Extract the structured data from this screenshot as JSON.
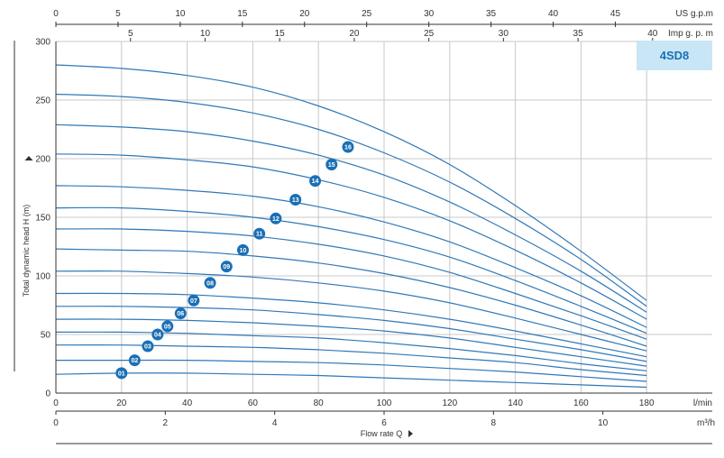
{
  "chart_data": {
    "type": "line",
    "model": "4SD8",
    "ylabel": "Total dynamic head H (m)",
    "xlabel": "Flow rate Q",
    "y_ticks": [
      "0",
      "50",
      "100",
      "150",
      "200",
      "250",
      "300"
    ],
    "ylim": [
      0,
      300
    ],
    "x_axes": {
      "lmin": {
        "unit": "l/min",
        "range": [
          0,
          200
        ],
        "ticks": [
          "0",
          "20",
          "40",
          "60",
          "80",
          "100",
          "120",
          "140",
          "160",
          "180"
        ]
      },
      "m3h": {
        "unit": "m³/h",
        "range": [
          0,
          12
        ],
        "ticks": [
          "0",
          "2",
          "4",
          "6",
          "8",
          "10"
        ]
      },
      "usgpm": {
        "unit": "US g.p.m",
        "range": [
          0,
          52.8
        ],
        "ticks": [
          "0",
          "5",
          "10",
          "15",
          "20",
          "25",
          "30",
          "35",
          "40",
          "45"
        ]
      },
      "impgpm": {
        "unit": "Imp g. p. m",
        "range": [
          0,
          44
        ],
        "ticks": [
          "5",
          "10",
          "15",
          "20",
          "25",
          "30",
          "35",
          "40"
        ]
      }
    },
    "grid": true,
    "x_unit": "l/min",
    "series": [
      {
        "name": "01",
        "x": [
          0,
          20,
          40,
          60,
          80,
          100,
          120,
          140,
          160,
          180
        ],
        "y": [
          16,
          17,
          17,
          16,
          15,
          13,
          11,
          9,
          7,
          5
        ]
      },
      {
        "name": "02",
        "x": [
          0,
          20,
          40,
          60,
          80,
          100,
          120,
          140,
          160,
          180
        ],
        "y": [
          28,
          28,
          28,
          27,
          26,
          24,
          21,
          18,
          14,
          10
        ]
      },
      {
        "name": "03",
        "x": [
          0,
          20,
          40,
          60,
          80,
          100,
          120,
          140,
          160,
          180
        ],
        "y": [
          41,
          41,
          40,
          39,
          37,
          34,
          30,
          26,
          20,
          15
        ]
      },
      {
        "name": "04",
        "x": [
          0,
          20,
          40,
          60,
          80,
          100,
          120,
          140,
          160,
          180
        ],
        "y": [
          52,
          52,
          51,
          49,
          47,
          43,
          38,
          32,
          25,
          19
        ]
      },
      {
        "name": "05",
        "x": [
          0,
          20,
          40,
          60,
          80,
          100,
          120,
          140,
          160,
          180
        ],
        "y": [
          63,
          63,
          62,
          60,
          57,
          53,
          47,
          39,
          31,
          23
        ]
      },
      {
        "name": "06",
        "x": [
          0,
          20,
          40,
          60,
          80,
          100,
          120,
          140,
          160,
          180
        ],
        "y": [
          74,
          74,
          73,
          71,
          67,
          62,
          55,
          46,
          37,
          27
        ]
      },
      {
        "name": "07",
        "x": [
          0,
          20,
          40,
          60,
          80,
          100,
          120,
          140,
          160,
          180
        ],
        "y": [
          85,
          85,
          84,
          81,
          77,
          71,
          63,
          53,
          42,
          31
        ]
      },
      {
        "name": "08",
        "x": [
          0,
          20,
          40,
          60,
          80,
          100,
          120,
          140,
          160,
          180
        ],
        "y": [
          104,
          104,
          102,
          99,
          94,
          87,
          77,
          64,
          50,
          36
        ]
      },
      {
        "name": "09",
        "x": [
          0,
          20,
          40,
          60,
          80,
          100,
          120,
          140,
          160,
          180
        ],
        "y": [
          123,
          122,
          121,
          117,
          111,
          102,
          90,
          75,
          58,
          40
        ]
      },
      {
        "name": "10",
        "x": [
          0,
          20,
          40,
          60,
          80,
          100,
          120,
          140,
          160,
          180
        ],
        "y": [
          140,
          140,
          138,
          134,
          127,
          117,
          103,
          85,
          66,
          46
        ]
      },
      {
        "name": "11",
        "x": [
          0,
          20,
          40,
          60,
          80,
          100,
          120,
          140,
          160,
          180
        ],
        "y": [
          158,
          158,
          155,
          150,
          142,
          131,
          116,
          96,
          74,
          51
        ]
      },
      {
        "name": "12",
        "x": [
          0,
          20,
          40,
          60,
          80,
          100,
          120,
          140,
          160,
          180
        ],
        "y": [
          177,
          176,
          173,
          168,
          159,
          146,
          129,
          107,
          83,
          56
        ]
      },
      {
        "name": "13",
        "x": [
          0,
          20,
          40,
          60,
          80,
          100,
          120,
          140,
          160,
          180
        ],
        "y": [
          204,
          203,
          199,
          193,
          182,
          167,
          147,
          122,
          94,
          63
        ]
      },
      {
        "name": "14",
        "x": [
          0,
          20,
          40,
          60,
          80,
          100,
          120,
          140,
          160,
          180
        ],
        "y": [
          229,
          227,
          223,
          215,
          203,
          186,
          163,
          135,
          104,
          69
        ]
      },
      {
        "name": "15",
        "x": [
          0,
          20,
          40,
          60,
          80,
          100,
          120,
          140,
          160,
          180
        ],
        "y": [
          255,
          253,
          248,
          239,
          225,
          205,
          180,
          149,
          114,
          74
        ]
      },
      {
        "name": "16",
        "x": [
          0,
          20,
          40,
          60,
          80,
          100,
          120,
          140,
          160,
          180
        ],
        "y": [
          280,
          277,
          271,
          261,
          245,
          223,
          195,
          160,
          121,
          79
        ]
      }
    ],
    "labels": [
      {
        "name": "01",
        "x": 20,
        "y": 17
      },
      {
        "name": "02",
        "x": 24,
        "y": 28
      },
      {
        "name": "03",
        "x": 28,
        "y": 40
      },
      {
        "name": "04",
        "x": 31,
        "y": 50
      },
      {
        "name": "05",
        "x": 34,
        "y": 57
      },
      {
        "name": "06",
        "x": 38,
        "y": 68
      },
      {
        "name": "07",
        "x": 42,
        "y": 79
      },
      {
        "name": "08",
        "x": 47,
        "y": 94
      },
      {
        "name": "09",
        "x": 52,
        "y": 108
      },
      {
        "name": "10",
        "x": 57,
        "y": 122
      },
      {
        "name": "11",
        "x": 62,
        "y": 136
      },
      {
        "name": "12",
        "x": 67,
        "y": 149
      },
      {
        "name": "13",
        "x": 73,
        "y": 165
      },
      {
        "name": "14",
        "x": 79,
        "y": 181
      },
      {
        "name": "15",
        "x": 84,
        "y": 195
      },
      {
        "name": "16",
        "x": 89,
        "y": 210
      }
    ],
    "colors": {
      "curve": "#2f78b8",
      "badge": "#1a6fb5",
      "grid": "#c8c8c8",
      "model_box": "#c8e6f5",
      "axis": "#333333"
    }
  }
}
